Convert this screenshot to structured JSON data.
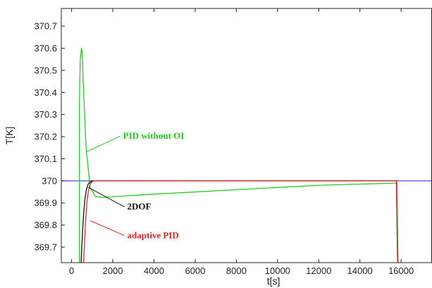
{
  "chart_data": {
    "type": "line",
    "title": "",
    "xlabel": "t[s]",
    "ylabel": "T[K]",
    "xlim": [
      -500,
      17500
    ],
    "ylim": [
      369.63,
      370.78
    ],
    "x_ticks": [
      0,
      2000,
      4000,
      6000,
      8000,
      10000,
      12000,
      14000,
      16000
    ],
    "x_tick_labels": [
      "0",
      "2000",
      "4000",
      "6000",
      "8000",
      "10000",
      "12000",
      "14000",
      "16000"
    ],
    "y_ticks": [
      369.7,
      369.8,
      369.9,
      370,
      370.1,
      370.2,
      370.3,
      370.4,
      370.5,
      370.6,
      370.7
    ],
    "y_tick_labels": [
      "369.7",
      "369.8",
      "369.9",
      "370",
      "370.1",
      "370.2",
      "370.3",
      "370.4",
      "370.5",
      "370.6",
      "370.7"
    ],
    "grid": false,
    "reference": {
      "color": "#4a4adf",
      "x": [
        -500,
        17500
      ],
      "y": [
        370,
        370
      ]
    },
    "series": [
      {
        "name": "PID without OI",
        "color": "#22cc22",
        "x": [
          380,
          380,
          420,
          480,
          520,
          560,
          700,
          900,
          1150,
          1500,
          4000,
          8000,
          12000,
          15800,
          15810,
          15830,
          15850
        ],
        "y": [
          369.63,
          370.35,
          370.55,
          370.6,
          370.58,
          370.45,
          370.15,
          369.97,
          369.93,
          369.925,
          369.94,
          369.96,
          369.98,
          369.99,
          369.9,
          369.75,
          369.63
        ]
      },
      {
        "name": "2DOF",
        "color": "#111111",
        "x": [
          460,
          520,
          580,
          650,
          720,
          800,
          900,
          1000,
          15780,
          15790,
          15810,
          15830
        ],
        "y": [
          369.63,
          369.75,
          369.85,
          369.92,
          369.96,
          369.985,
          369.995,
          370,
          370,
          369.9,
          369.75,
          369.63
        ]
      },
      {
        "name": "adaptive PID",
        "color": "#ee2222",
        "x": [
          580,
          640,
          700,
          760,
          830,
          900,
          980,
          1060,
          15780,
          15790,
          15810,
          15830
        ],
        "y": [
          369.63,
          369.75,
          369.85,
          369.92,
          369.96,
          369.985,
          369.995,
          370,
          370,
          369.9,
          369.75,
          369.63
        ]
      }
    ],
    "annotations": [
      {
        "text": "PID without OI",
        "series": "PID without OI",
        "at": [
          2500,
          370.19
        ],
        "anchor": [
          700,
          370.13
        ],
        "color": "#22cc22"
      },
      {
        "text": "2DOF",
        "series": "2DOF",
        "at": [
          2700,
          369.87
        ],
        "anchor": [
          820,
          369.97
        ],
        "color": "#111111"
      },
      {
        "text": "adaptive PID",
        "series": "adaptive PID",
        "at": [
          2700,
          369.74
        ],
        "anchor": [
          900,
          369.82
        ],
        "color": "#ee2222"
      }
    ]
  }
}
